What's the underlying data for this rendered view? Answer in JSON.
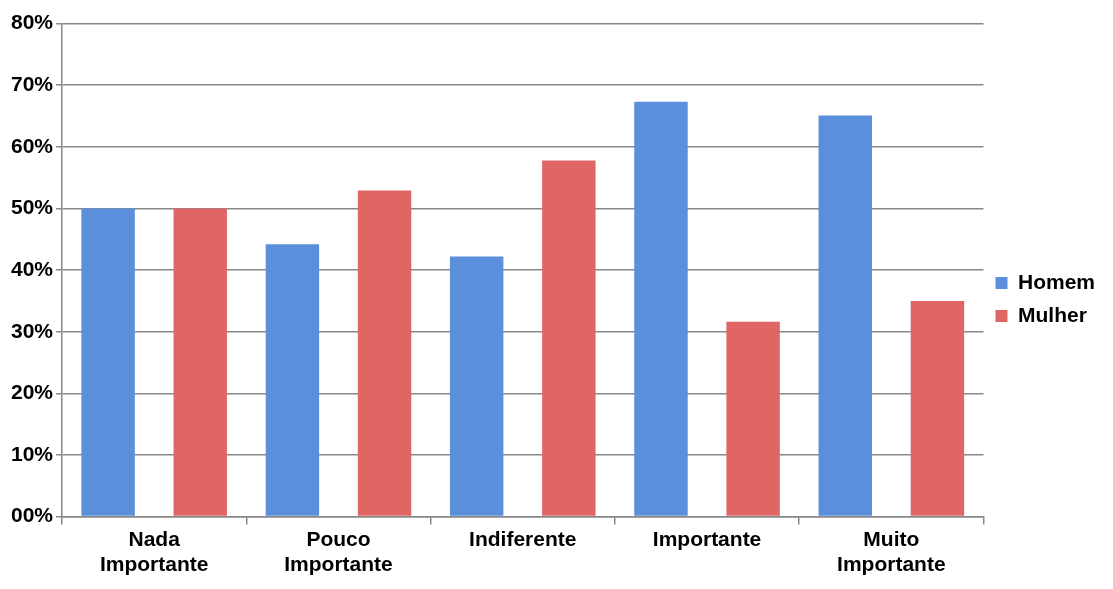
{
  "chart_data": {
    "type": "bar",
    "categories": [
      "Nada Importante",
      "Pouco Importante",
      "Indiferente",
      "Importante",
      "Muito Importante"
    ],
    "series": [
      {
        "name": "Homem",
        "color": "#5b8fdc",
        "values": [
          50,
          44.2,
          42.2,
          67.3,
          65.1
        ]
      },
      {
        "name": "Mulher",
        "color": "#e06666",
        "values": [
          50,
          52.9,
          57.8,
          31.6,
          35
        ]
      }
    ],
    "ylim": [
      0,
      80
    ],
    "yticks": [
      {
        "value": 0,
        "label": "00%"
      },
      {
        "value": 10,
        "label": "10%"
      },
      {
        "value": 20,
        "label": "20%"
      },
      {
        "value": 30,
        "label": "30%"
      },
      {
        "value": 40,
        "label": "40%"
      },
      {
        "value": 50,
        "label": "50%"
      },
      {
        "value": 60,
        "label": "60%"
      },
      {
        "value": 70,
        "label": "70%"
      },
      {
        "value": 80,
        "label": "80%"
      }
    ],
    "grid": "y",
    "legend": "right"
  }
}
